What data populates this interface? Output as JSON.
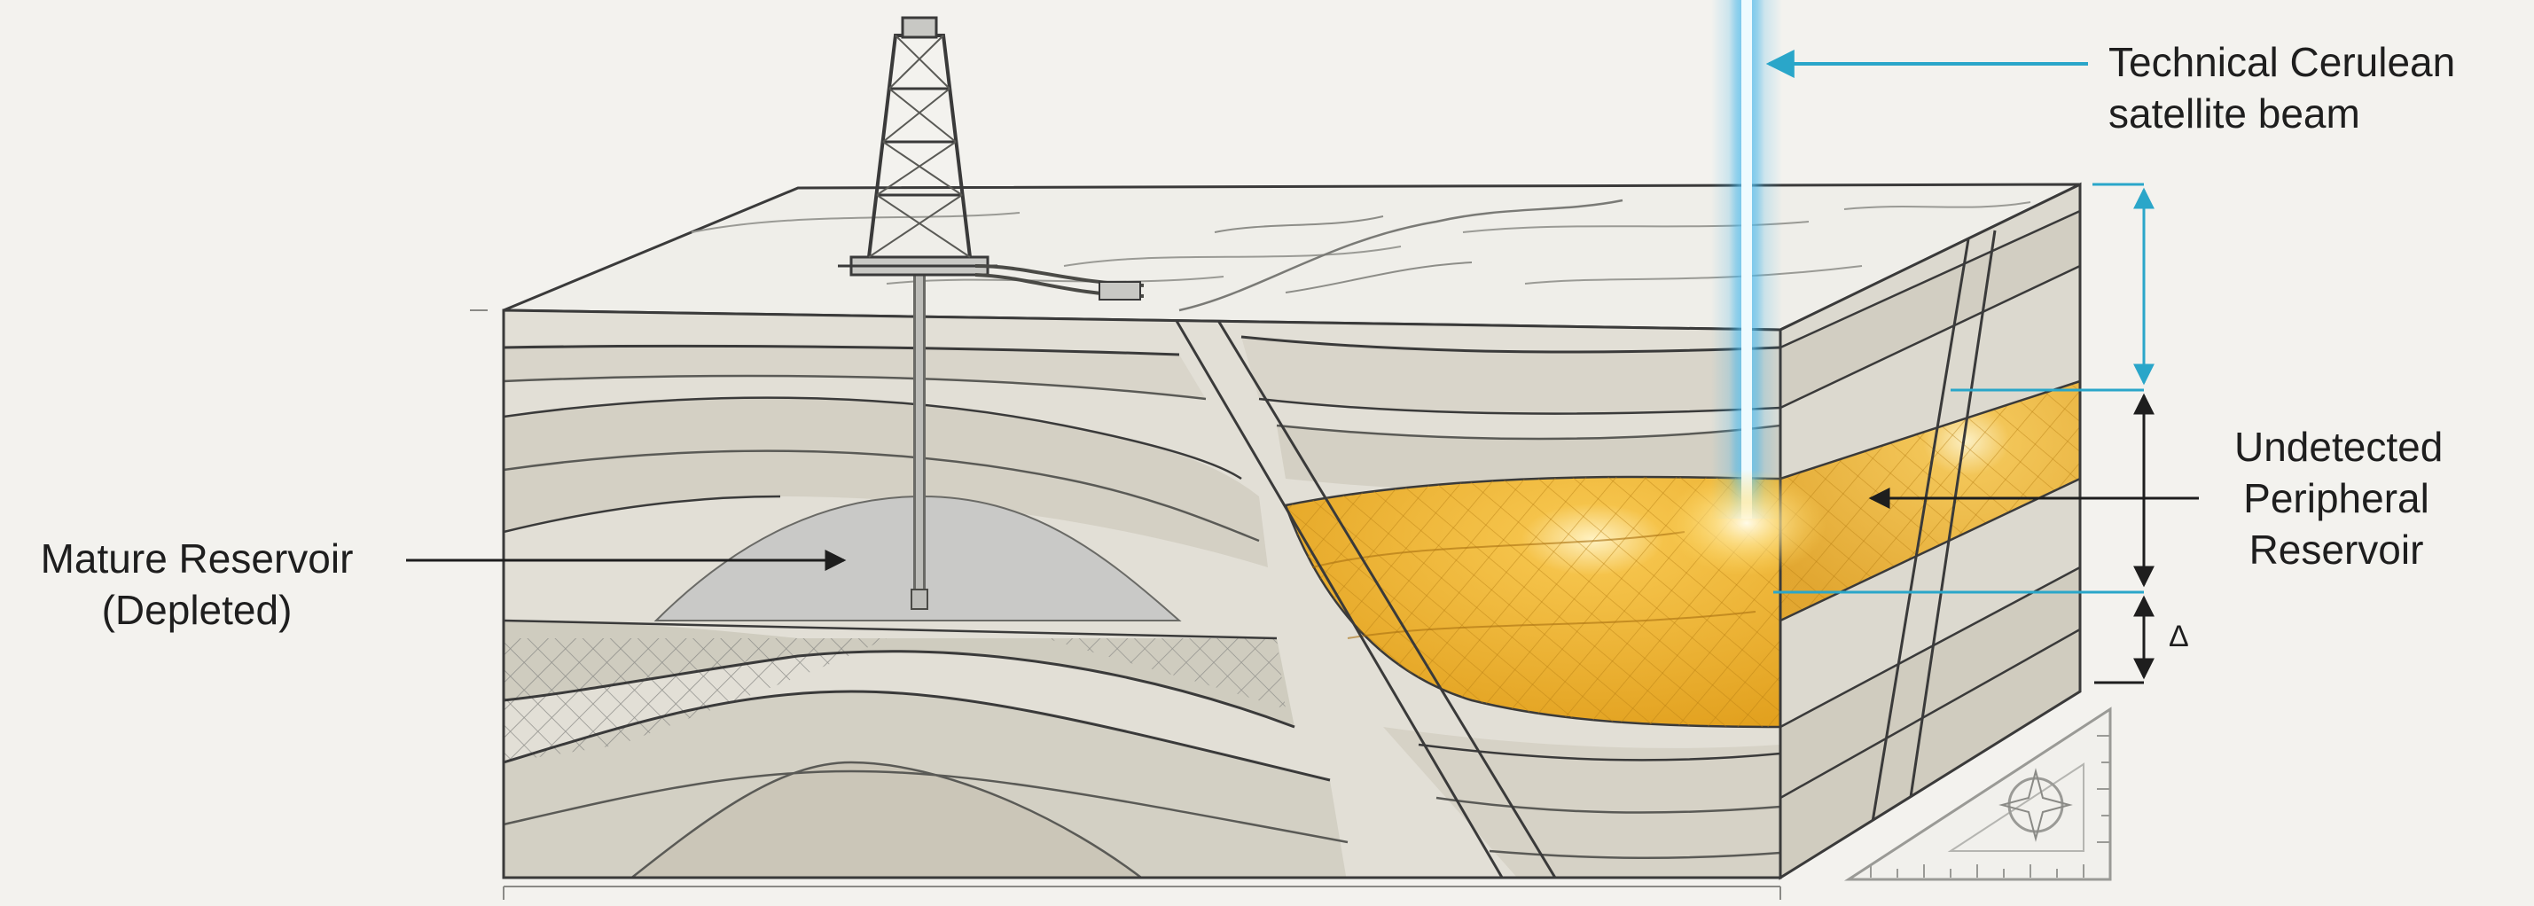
{
  "labels": {
    "beam_line1": "Technical Cerulean",
    "beam_line2": "satellite beam",
    "undetected_line1": "Undetected",
    "undetected_line2": "Peripheral",
    "undetected_line3": "Reservoir",
    "mature_line1": "Mature Reservoir",
    "mature_line2": "(Depleted)",
    "delta": "Δ"
  },
  "colors": {
    "background": "#f3f2ee",
    "beam": "#3fb4ea",
    "reservoir_undetected": "#e9ab2a",
    "reservoir_mature": "#c9c9c7",
    "stroke": "#3a3a3a",
    "dimension_cyan": "#2aa6c9"
  }
}
